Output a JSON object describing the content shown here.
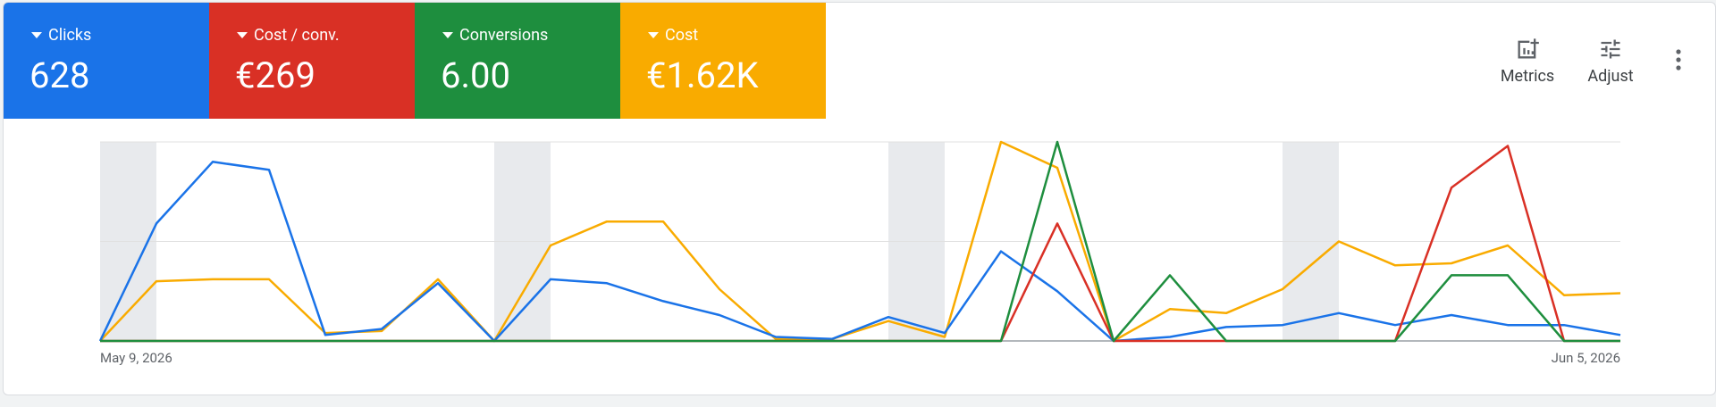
{
  "chart_data": {
    "type": "line",
    "categories": [
      "May 9, 2026",
      null,
      null,
      null,
      null,
      null,
      null,
      null,
      null,
      null,
      null,
      null,
      null,
      null,
      null,
      null,
      null,
      null,
      null,
      null,
      null,
      null,
      null,
      null,
      null,
      null,
      null,
      "Jun 5, 2026"
    ],
    "ylim": [
      0,
      100
    ],
    "yticks": [
      0,
      50,
      100
    ],
    "grid": true,
    "series": [
      {
        "name": "Clicks",
        "total": "628",
        "color": "#1a73e8",
        "values": [
          0,
          59,
          90,
          86,
          3,
          6,
          29,
          0,
          31,
          29,
          20,
          13,
          2,
          1,
          12,
          4,
          45,
          25,
          0,
          2,
          7,
          8,
          14,
          8,
          13,
          8,
          8,
          3
        ]
      },
      {
        "name": "Cost / conv.",
        "total": "€269",
        "color": "#d93025",
        "values": [
          0,
          0,
          0,
          0,
          0,
          0,
          0,
          0,
          0,
          0,
          0,
          0,
          0,
          0,
          0,
          0,
          0,
          59,
          0,
          0,
          0,
          0,
          0,
          0,
          77,
          98,
          0,
          0
        ]
      },
      {
        "name": "Conversions",
        "total": "6.00",
        "color": "#1e8e3e",
        "values": [
          0,
          0,
          0,
          0,
          0,
          0,
          0,
          0,
          0,
          0,
          0,
          0,
          0,
          0,
          0,
          0,
          0,
          100,
          0,
          33,
          0,
          0,
          0,
          0,
          33,
          33,
          0,
          0
        ]
      },
      {
        "name": "Cost",
        "total": "€1.62K",
        "color": "#f9ab00",
        "values": [
          0,
          30,
          31,
          31,
          4,
          5,
          31,
          0,
          48,
          60,
          60,
          26,
          1,
          1,
          10,
          2,
          100,
          87,
          0,
          16,
          14,
          26,
          50,
          38,
          39,
          48,
          23,
          24
        ]
      }
    ]
  },
  "toolbar": {
    "metrics": "Metrics",
    "adjust": "Adjust"
  }
}
